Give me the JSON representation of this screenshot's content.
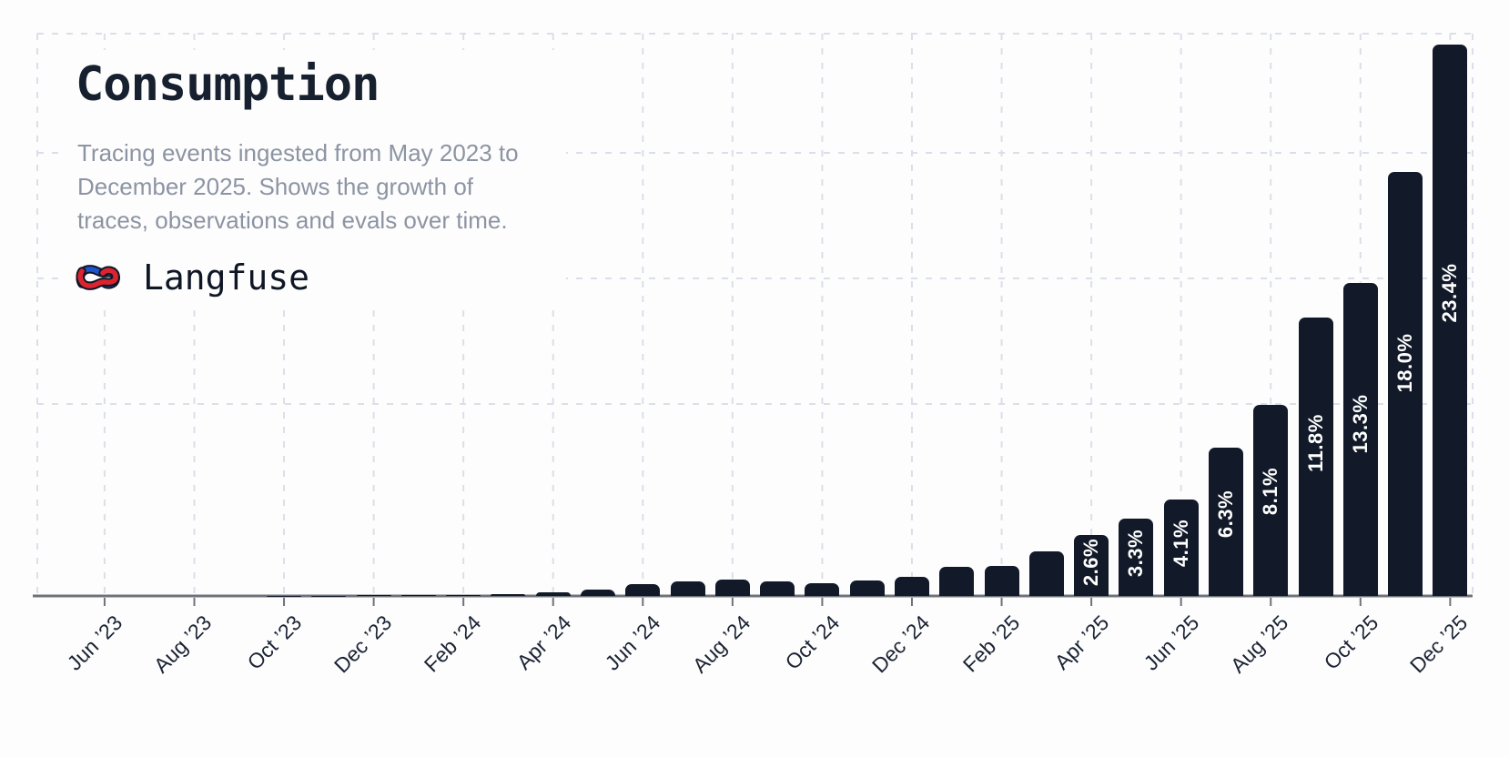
{
  "header": {
    "title": "Consumption",
    "subtitle_lines": [
      "Tracing events ingested from May 2023 to",
      "December 2025. Shows the growth of",
      "traces, observations and evals over time."
    ],
    "brand": {
      "name": "Langfuse"
    }
  },
  "chart_data": {
    "type": "bar",
    "title": "Consumption",
    "subtitle": "Tracing events ingested from May 2023 to December 2025. Shows the growth of traces, observations and evals over time.",
    "x_axis": {
      "unit": "month",
      "range_start": "May ’23",
      "range_end": "Dec ’25",
      "tick_every_months": 2,
      "tick_labels": [
        "Jun ’23",
        "Aug ’23",
        "Oct ’23",
        "Dec ’23",
        "Feb ’24",
        "Apr ’24",
        "Jun ’24",
        "Aug ’24",
        "Oct ’24",
        "Dec ’24",
        "Feb ’25",
        "Apr ’25",
        "Jun ’25",
        "Aug ’25",
        "Oct ’25",
        "Dec ’25"
      ]
    },
    "y_axis": {
      "unit": "share of total tracing events (%)",
      "labels_visible": false,
      "grid": "dashed"
    },
    "legend_position": "none",
    "bars": [
      {
        "month": "May ’23",
        "pct": 0
      },
      {
        "month": "Jun ’23",
        "pct": 0,
        "tick_label": "Jun ’23"
      },
      {
        "month": "Jul ’23",
        "pct": 0
      },
      {
        "month": "Aug ’23",
        "pct": 0,
        "tick_label": "Aug ’23"
      },
      {
        "month": "Sep ’23",
        "pct": 0
      },
      {
        "month": "Oct ’23",
        "pct": 0.01,
        "tick_label": "Oct ’23"
      },
      {
        "month": "Nov ’23",
        "pct": 0.01
      },
      {
        "month": "Dec ’23",
        "pct": 0.02,
        "tick_label": "Dec ’23"
      },
      {
        "month": "Jan ’24",
        "pct": 0.02
      },
      {
        "month": "Feb ’24",
        "pct": 0.03,
        "tick_label": "Feb ’24"
      },
      {
        "month": "Mar ’24",
        "pct": 0.08
      },
      {
        "month": "Apr ’24",
        "pct": 0.15,
        "tick_label": "Apr ’24"
      },
      {
        "month": "May ’24",
        "pct": 0.27
      },
      {
        "month": "Jun ’24",
        "pct": 0.5,
        "tick_label": "Jun ’24"
      },
      {
        "month": "Jul ’24",
        "pct": 0.62
      },
      {
        "month": "Aug ’24",
        "pct": 0.7,
        "tick_label": "Aug ’24"
      },
      {
        "month": "Sep ’24",
        "pct": 0.62
      },
      {
        "month": "Oct ’24",
        "pct": 0.55,
        "tick_label": "Oct ’24"
      },
      {
        "month": "Nov ’24",
        "pct": 0.65
      },
      {
        "month": "Dec ’24",
        "pct": 0.82,
        "tick_label": "Dec ’24"
      },
      {
        "month": "Jan ’25",
        "pct": 1.24
      },
      {
        "month": "Feb ’25",
        "pct": 1.28,
        "tick_label": "Feb ’25"
      },
      {
        "month": "Mar ’25",
        "pct": 1.9
      },
      {
        "month": "Apr ’25",
        "pct": 2.6,
        "value_label": "2.6%",
        "tick_label": "Apr ’25"
      },
      {
        "month": "May ’25",
        "pct": 3.3,
        "value_label": "3.3%"
      },
      {
        "month": "Jun ’25",
        "pct": 4.1,
        "value_label": "4.1%",
        "tick_label": "Jun ’25"
      },
      {
        "month": "Jul ’25",
        "pct": 6.3,
        "value_label": "6.3%"
      },
      {
        "month": "Aug ’25",
        "pct": 8.1,
        "value_label": "8.1%",
        "tick_label": "Aug ’25"
      },
      {
        "month": "Sep ’25",
        "pct": 11.8,
        "value_label": "11.8%"
      },
      {
        "month": "Oct ’25",
        "pct": 13.3,
        "value_label": "13.3%",
        "tick_label": "Oct ’25"
      },
      {
        "month": "Nov ’25",
        "pct": 18.0,
        "value_label": "18.0%"
      },
      {
        "month": "Dec ’25",
        "pct": 23.4,
        "value_label": "23.4%",
        "tick_label": "Dec ’25"
      }
    ],
    "colors": {
      "bar": "#121a29",
      "bar_value_label": "#ffffff",
      "gridline": "#dbdfe9",
      "axis": "#6e737b",
      "tick_label": "#1b2334",
      "title": "#16202f",
      "subtitle": "#8c94a3",
      "background": "#fdfdfd",
      "logo_red": "#dc2430",
      "logo_blue": "#1f55cc",
      "logo_outline": "#0f1626"
    }
  }
}
